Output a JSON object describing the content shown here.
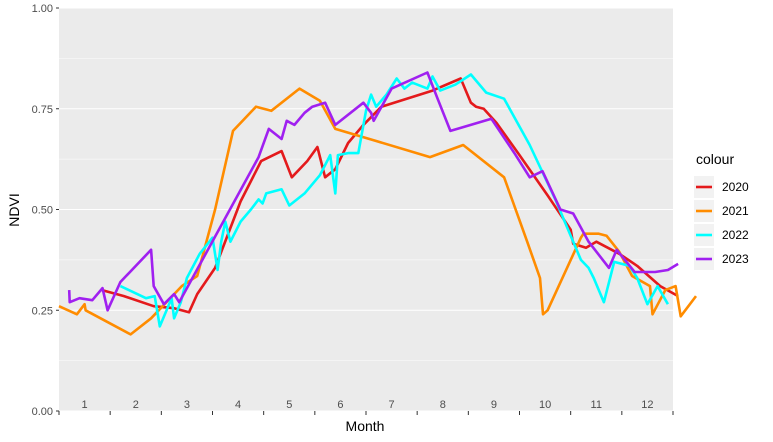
{
  "chart_data": {
    "type": "line",
    "title": "",
    "xlabel": "Month",
    "ylabel": "NDVI",
    "xlim": [
      0,
      12
    ],
    "ylim": [
      0,
      1
    ],
    "y_ticks": [
      "0.00",
      "0.25",
      "0.50",
      "0.75",
      "1.00"
    ],
    "month_labels": [
      "1",
      "2",
      "3",
      "4",
      "5",
      "6",
      "7",
      "8",
      "9",
      "10",
      "11",
      "12"
    ],
    "grid": true,
    "legend": {
      "title": "colour",
      "position": "right"
    },
    "series": [
      {
        "name": "2020",
        "color": "#E41A1C",
        "points": [
          [
            0.84,
            0.3
          ],
          [
            1.27,
            0.285
          ],
          [
            1.85,
            0.26
          ],
          [
            2.25,
            0.255
          ],
          [
            2.54,
            0.245
          ],
          [
            2.7,
            0.29
          ],
          [
            3.05,
            0.355
          ],
          [
            3.55,
            0.52
          ],
          [
            3.95,
            0.62
          ],
          [
            4.35,
            0.645
          ],
          [
            4.55,
            0.58
          ],
          [
            4.85,
            0.62
          ],
          [
            5.05,
            0.655
          ],
          [
            5.2,
            0.58
          ],
          [
            5.4,
            0.6
          ],
          [
            5.65,
            0.665
          ],
          [
            5.95,
            0.71
          ],
          [
            6.3,
            0.755
          ],
          [
            7.3,
            0.795
          ],
          [
            7.85,
            0.825
          ],
          [
            8.05,
            0.765
          ],
          [
            8.15,
            0.755
          ],
          [
            8.3,
            0.75
          ],
          [
            8.55,
            0.715
          ],
          [
            9.0,
            0.635
          ],
          [
            9.55,
            0.535
          ],
          [
            10.0,
            0.45
          ],
          [
            10.05,
            0.415
          ],
          [
            10.3,
            0.405
          ],
          [
            10.5,
            0.42
          ],
          [
            10.95,
            0.39
          ],
          [
            11.3,
            0.36
          ],
          [
            11.75,
            0.31
          ],
          [
            12.1,
            0.285
          ]
        ]
      },
      {
        "name": "2021",
        "color": "#FF8C00",
        "points": [
          [
            0.0,
            0.26
          ],
          [
            0.35,
            0.24
          ],
          [
            0.5,
            0.265
          ],
          [
            0.52,
            0.25
          ],
          [
            1.4,
            0.19
          ],
          [
            1.8,
            0.23
          ],
          [
            2.4,
            0.31
          ],
          [
            2.7,
            0.335
          ],
          [
            3.05,
            0.5
          ],
          [
            3.4,
            0.695
          ],
          [
            3.85,
            0.755
          ],
          [
            4.15,
            0.745
          ],
          [
            4.7,
            0.8
          ],
          [
            5.1,
            0.77
          ],
          [
            5.4,
            0.7
          ],
          [
            6.2,
            0.67
          ],
          [
            7.25,
            0.63
          ],
          [
            7.9,
            0.66
          ],
          [
            8.7,
            0.58
          ],
          [
            9.15,
            0.42
          ],
          [
            9.4,
            0.33
          ],
          [
            9.46,
            0.24
          ],
          [
            9.55,
            0.25
          ],
          [
            10.2,
            0.43
          ],
          [
            10.25,
            0.44
          ],
          [
            10.55,
            0.44
          ],
          [
            10.7,
            0.435
          ],
          [
            10.95,
            0.395
          ],
          [
            11.2,
            0.335
          ],
          [
            11.55,
            0.31
          ],
          [
            11.6,
            0.24
          ],
          [
            11.85,
            0.3
          ],
          [
            12.05,
            0.31
          ],
          [
            12.15,
            0.235
          ],
          [
            12.45,
            0.285
          ]
        ]
      },
      {
        "name": "2022",
        "color": "#00FFFF",
        "points": [
          [
            1.2,
            0.31
          ],
          [
            1.7,
            0.28
          ],
          [
            1.87,
            0.285
          ],
          [
            1.97,
            0.21
          ],
          [
            2.2,
            0.28
          ],
          [
            2.25,
            0.23
          ],
          [
            2.38,
            0.27
          ],
          [
            2.5,
            0.33
          ],
          [
            2.75,
            0.39
          ],
          [
            3.0,
            0.43
          ],
          [
            3.1,
            0.35
          ],
          [
            3.17,
            0.42
          ],
          [
            3.25,
            0.47
          ],
          [
            3.35,
            0.42
          ],
          [
            3.55,
            0.47
          ],
          [
            3.75,
            0.5
          ],
          [
            3.9,
            0.525
          ],
          [
            3.98,
            0.515
          ],
          [
            4.05,
            0.54
          ],
          [
            4.35,
            0.55
          ],
          [
            4.5,
            0.51
          ],
          [
            4.8,
            0.54
          ],
          [
            5.1,
            0.585
          ],
          [
            5.3,
            0.635
          ],
          [
            5.4,
            0.54
          ],
          [
            5.45,
            0.635
          ],
          [
            5.65,
            0.64
          ],
          [
            5.85,
            0.64
          ],
          [
            6.0,
            0.745
          ],
          [
            6.1,
            0.785
          ],
          [
            6.2,
            0.755
          ],
          [
            6.4,
            0.785
          ],
          [
            6.6,
            0.825
          ],
          [
            6.75,
            0.8
          ],
          [
            6.9,
            0.815
          ],
          [
            7.2,
            0.8
          ],
          [
            7.3,
            0.83
          ],
          [
            7.45,
            0.795
          ],
          [
            7.75,
            0.81
          ],
          [
            8.05,
            0.835
          ],
          [
            8.35,
            0.79
          ],
          [
            8.7,
            0.775
          ],
          [
            9.2,
            0.66
          ],
          [
            9.7,
            0.525
          ],
          [
            10.2,
            0.375
          ],
          [
            10.35,
            0.355
          ],
          [
            10.45,
            0.33
          ],
          [
            10.65,
            0.27
          ],
          [
            10.85,
            0.37
          ],
          [
            11.15,
            0.36
          ],
          [
            11.3,
            0.33
          ],
          [
            11.5,
            0.265
          ],
          [
            11.7,
            0.31
          ],
          [
            11.9,
            0.265
          ]
        ]
      },
      {
        "name": "2023",
        "color": "#A020F0",
        "points": [
          [
            0.2,
            0.3
          ],
          [
            0.21,
            0.27
          ],
          [
            0.4,
            0.28
          ],
          [
            0.65,
            0.275
          ],
          [
            0.85,
            0.305
          ],
          [
            0.95,
            0.25
          ],
          [
            1.2,
            0.32
          ],
          [
            1.8,
            0.4
          ],
          [
            1.85,
            0.31
          ],
          [
            2.05,
            0.265
          ],
          [
            2.25,
            0.29
          ],
          [
            2.35,
            0.27
          ],
          [
            3.9,
            0.63
          ],
          [
            4.1,
            0.7
          ],
          [
            4.35,
            0.675
          ],
          [
            4.45,
            0.72
          ],
          [
            4.6,
            0.71
          ],
          [
            4.8,
            0.74
          ],
          [
            4.95,
            0.755
          ],
          [
            5.2,
            0.765
          ],
          [
            5.4,
            0.71
          ],
          [
            5.95,
            0.765
          ],
          [
            6.1,
            0.74
          ],
          [
            6.15,
            0.72
          ],
          [
            6.5,
            0.8
          ],
          [
            7.2,
            0.84
          ],
          [
            7.4,
            0.775
          ],
          [
            7.65,
            0.695
          ],
          [
            8.45,
            0.725
          ],
          [
            8.9,
            0.64
          ],
          [
            9.2,
            0.58
          ],
          [
            9.45,
            0.595
          ],
          [
            9.8,
            0.5
          ],
          [
            10.05,
            0.49
          ],
          [
            10.35,
            0.42
          ],
          [
            10.75,
            0.355
          ],
          [
            10.9,
            0.4
          ],
          [
            11.25,
            0.345
          ],
          [
            11.65,
            0.345
          ],
          [
            11.9,
            0.35
          ],
          [
            12.1,
            0.365
          ]
        ]
      }
    ]
  }
}
